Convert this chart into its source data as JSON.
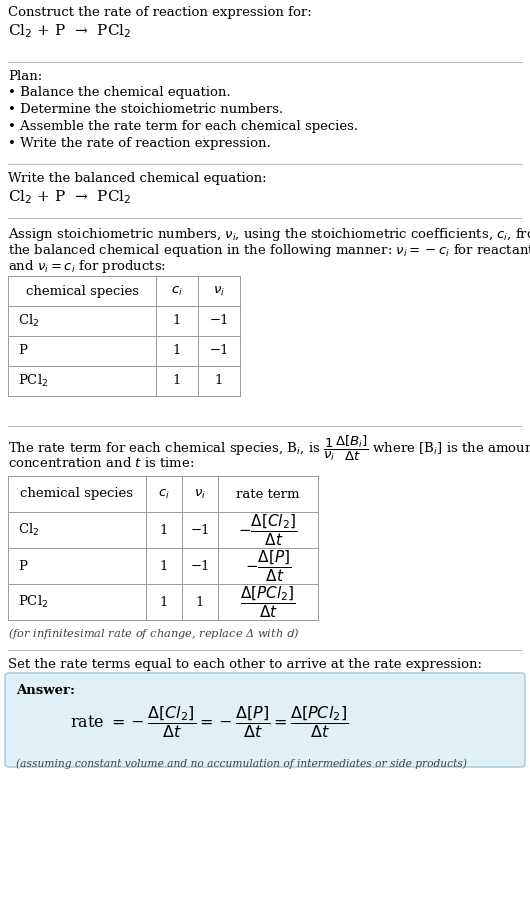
{
  "title_line1": "Construct the rate of reaction expression for:",
  "title_line2": "Cl$_2$ + P  →  PCl$_2$",
  "bg_color": "#ffffff",
  "plan_title": "Plan:",
  "plan_bullets": [
    "• Balance the chemical equation.",
    "• Determine the stoichiometric numbers.",
    "• Assemble the rate term for each chemical species.",
    "• Write the rate of reaction expression."
  ],
  "section2_title": "Write the balanced chemical equation:",
  "section2_eq": "Cl$_2$ + P  →  PCl$_2$",
  "section3_line1": "Assign stoichiometric numbers, $\\nu_i$, using the stoichiometric coefficients, $c_i$, from",
  "section3_line2": "the balanced chemical equation in the following manner: $\\nu_i = -c_i$ for reactants",
  "section3_line3": "and $\\nu_i = c_i$ for products:",
  "table1_headers": [
    "chemical species",
    "$c_i$",
    "$\\nu_i$"
  ],
  "table1_rows": [
    [
      "Cl$_2$",
      "1",
      "−1"
    ],
    [
      "P",
      "1",
      "−1"
    ],
    [
      "PCl$_2$",
      "1",
      "1"
    ]
  ],
  "section4_line1": "The rate term for each chemical species, B$_i$, is $\\dfrac{1}{\\nu_i}\\dfrac{\\Delta[B_i]}{\\Delta t}$ where [B$_i$] is the amount",
  "section4_line2": "concentration and $t$ is time:",
  "table2_headers": [
    "chemical species",
    "$c_i$",
    "$\\nu_i$",
    "rate term"
  ],
  "table2_rows": [
    [
      "Cl$_2$",
      "1",
      "−1",
      "$-\\dfrac{\\Delta[Cl_2]}{\\Delta t}$"
    ],
    [
      "P",
      "1",
      "−1",
      "$-\\dfrac{\\Delta[P]}{\\Delta t}$"
    ],
    [
      "PCl$_2$",
      "1",
      "1",
      "$\\dfrac{\\Delta[PCl_2]}{\\Delta t}$"
    ]
  ],
  "infinitesimal_note": "(for infinitesimal rate of change, replace Δ with $d$)",
  "section5_intro": "Set the rate terms equal to each other to arrive at the rate expression:",
  "answer_bg": "#dff0f7",
  "answer_border": "#a0c8dc",
  "answer_label": "Answer:",
  "answer_eq": "rate $= -\\dfrac{\\Delta[Cl_2]}{\\Delta t} = -\\dfrac{\\Delta[P]}{\\Delta t} = \\dfrac{\\Delta[PCl_2]}{\\Delta t}$",
  "answer_note": "(assuming constant volume and no accumulation of intermediates or side products)",
  "text_color": "#000000",
  "sep_color": "#bbbbbb",
  "table_line_color": "#999999"
}
